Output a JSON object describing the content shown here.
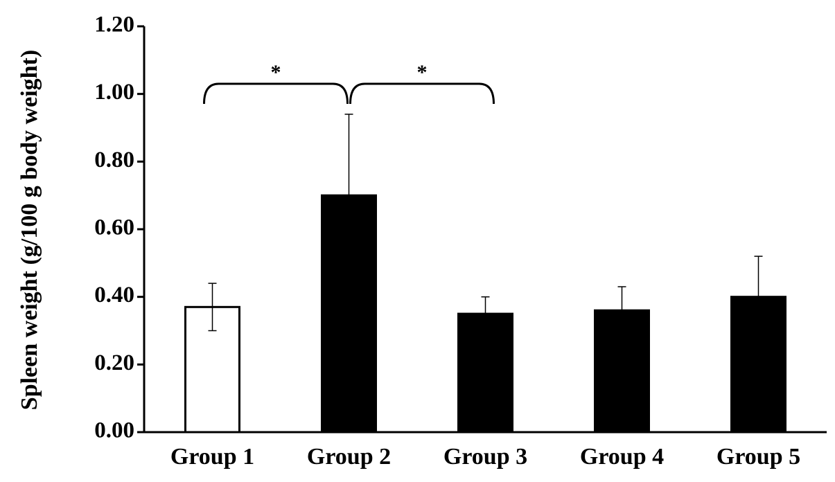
{
  "chart_data": {
    "type": "bar",
    "title": "",
    "xlabel": "",
    "ylabel": "Spleen weight (g/100 g body weight)",
    "ylim": [
      0,
      1.2
    ],
    "yticks": [
      "0.00",
      "0.20",
      "0.40",
      "0.60",
      "0.80",
      "1.00",
      "1.20"
    ],
    "categories": [
      "Group 1",
      "Group 2",
      "Group 3",
      "Group 4",
      "Group 5"
    ],
    "values": [
      0.37,
      0.7,
      0.35,
      0.36,
      0.4
    ],
    "error_upper": [
      0.07,
      0.24,
      0.05,
      0.07,
      0.12
    ],
    "error_lower": [
      0.07,
      0,
      0,
      0,
      0
    ],
    "bar_fills": [
      "#ffffff",
      "#000000",
      "#000000",
      "#000000",
      "#000000"
    ],
    "bar_stroke": "#000000",
    "grid": false,
    "legend": "none",
    "significance": [
      {
        "from": "Group 1",
        "to": "Group 2",
        "label": "*"
      },
      {
        "from": "Group 2",
        "to": "Group 3",
        "label": "*"
      }
    ]
  }
}
